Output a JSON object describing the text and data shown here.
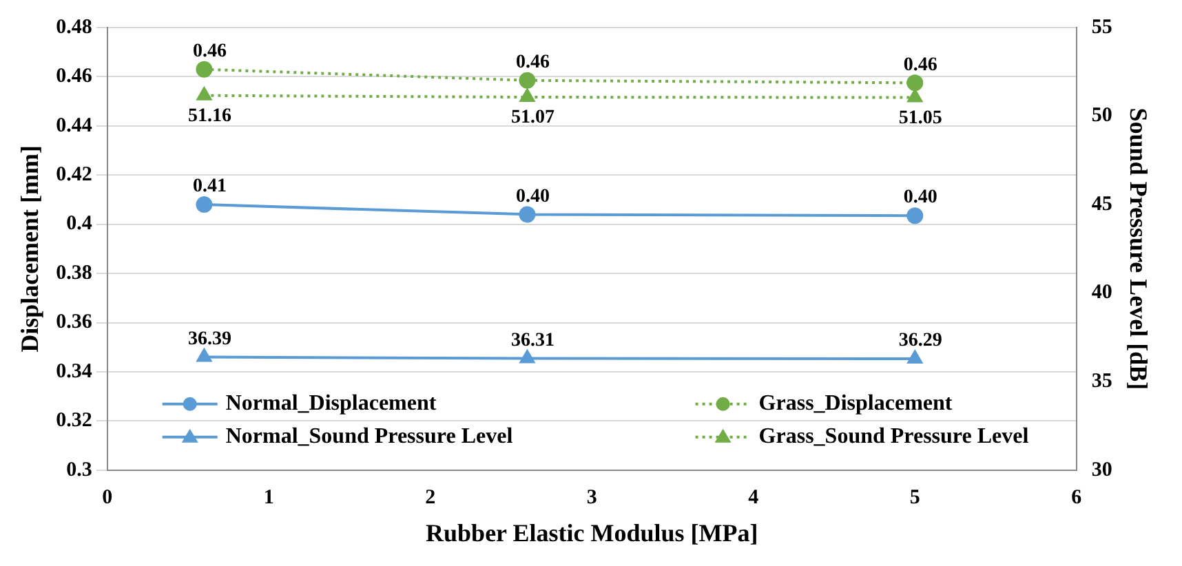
{
  "chart_data": {
    "type": "line",
    "xlabel": "Rubber Elastic Modulus [MPa]",
    "ylabel": "Displacement [mm]",
    "y2label": "Sound Pressure Level [dB]",
    "x": [
      0.6,
      2.6,
      5
    ],
    "series": [
      {
        "name": "Normal_Displacement",
        "color": "#5b9bd5",
        "values": [
          0.408,
          0.404,
          0.4035
        ],
        "value_labels": [
          "0.41",
          "0.40",
          "0.40"
        ],
        "marker": "circle",
        "line_style": "solid"
      },
      {
        "name": "Grass_Displacement",
        "color": "#70ad47",
        "values": [
          0.463,
          0.4585,
          0.4575
        ],
        "value_labels": [
          "0.46",
          "0.46",
          "0.46"
        ],
        "marker": "circle",
        "line_style": "dotted"
      },
      {
        "name": "Normal_Sound Pressure Level",
        "color": "#5b9bd5",
        "values": [
          36.39,
          36.31,
          36.29
        ],
        "value_labels": [
          "36.39",
          "36.31",
          "36.29"
        ],
        "marker": "triangle",
        "line_style": "solid",
        "axis": "y2"
      },
      {
        "name": "Grass_Sound Pressure Level",
        "color": "#70ad47",
        "values": [
          51.16,
          51.07,
          51.05
        ],
        "value_labels": [
          "51.16",
          "51.07",
          "51.05"
        ],
        "marker": "triangle",
        "line_style": "dotted",
        "axis": "y2"
      }
    ],
    "xlim": [
      0,
      6
    ],
    "xticks": [
      0,
      1,
      2,
      3,
      4,
      5,
      6
    ],
    "ylim": [
      0.3,
      0.48
    ],
    "yticks": [
      0.3,
      0.32,
      0.34,
      0.36,
      0.38,
      0.4,
      0.42,
      0.44,
      0.46,
      0.48
    ],
    "y2lim": [
      30,
      55
    ],
    "y2ticks": [
      30,
      35,
      40,
      45,
      50,
      55
    ],
    "grid": "y",
    "legend": "bottom"
  }
}
